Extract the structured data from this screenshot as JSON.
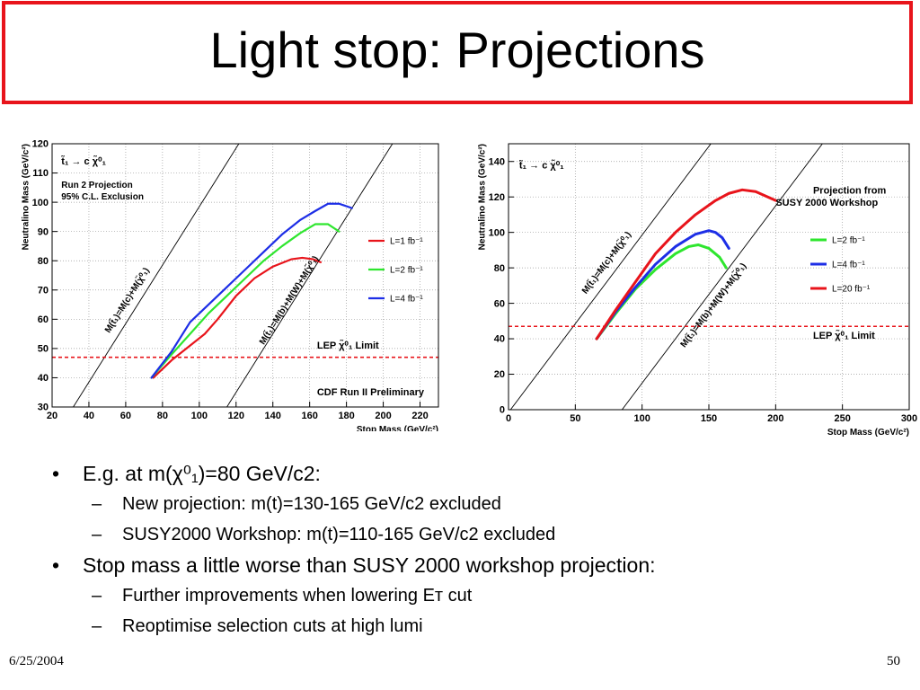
{
  "slide": {
    "title": "Light stop: Projections",
    "date": "6/25/2004",
    "page": "50"
  },
  "colors": {
    "accent": "#e8141b",
    "red": "#e8141b",
    "green": "#2ee62e",
    "blue": "#1d2ee6",
    "lep": "#e8141b"
  },
  "bullets": [
    {
      "level": 1,
      "text": "E.g. at m(χ⁰₁)=80 GeV/c2:"
    },
    {
      "level": 2,
      "text": "New projection: m(t)=130-165 GeV/c2 excluded"
    },
    {
      "level": 2,
      "text": "SUSY2000 Workshop: m(t)=110-165 GeV/c2 excluded"
    },
    {
      "level": 1,
      "text": "Stop mass a little worse than SUSY 2000 workshop projection:"
    },
    {
      "level": 2,
      "text": "Further improvements when lowering Eᴛ cut"
    },
    {
      "level": 2,
      "text": "Reoptimise selection cuts at high lumi"
    }
  ],
  "chart_data": [
    {
      "type": "line",
      "xlabel": "Stop Mass (GeV/c²)",
      "ylabel": "Neutralino Mass (GeV/c²)",
      "xlim": [
        20,
        230
      ],
      "ylim": [
        30,
        120
      ],
      "xticks": [
        20,
        40,
        60,
        80,
        100,
        120,
        140,
        160,
        180,
        200,
        220
      ],
      "yticks": [
        30,
        40,
        50,
        60,
        70,
        80,
        90,
        100,
        110,
        120
      ],
      "grid": true,
      "legend_position": "right",
      "annotations": {
        "decay": "t̃₁ → c χ̃⁰₁",
        "projection": "Run 2 Projection",
        "exclusion": "95% C.L. Exclusion",
        "diag1": "M(t̃₁)=M(c)+M(χ̃⁰₁)",
        "diag2": "M(t̃₁)=M(b)+M(W)+M(χ̃⁰₁)",
        "lep": "LEP χ̃⁰₁ Limit",
        "prelim": "CDF Run II Preliminary"
      },
      "lep_limit": 47,
      "series": [
        {
          "name": "L=1 fb⁻¹",
          "color": "red",
          "x": [
            75,
            85,
            95,
            103,
            110,
            120,
            130,
            140,
            150,
            156,
            162,
            166
          ],
          "y": [
            40,
            46,
            51,
            55,
            60,
            68,
            74,
            78,
            80.5,
            81,
            80.5,
            79.5
          ]
        },
        {
          "name": "L=2 fb⁻¹",
          "color": "green",
          "x": [
            74,
            85,
            95,
            105,
            115,
            125,
            135,
            145,
            155,
            163,
            170,
            176
          ],
          "y": [
            40,
            48,
            55,
            62,
            68,
            74,
            80,
            85,
            89.5,
            92.5,
            92.5,
            90
          ]
        },
        {
          "name": "L=4 fb⁻¹",
          "color": "blue",
          "x": [
            74,
            85,
            95,
            105,
            115,
            125,
            135,
            145,
            155,
            163,
            170,
            176,
            183
          ],
          "y": [
            40,
            49,
            59,
            65,
            71,
            77,
            83,
            89,
            94,
            97,
            99.5,
            99.5,
            98
          ]
        }
      ]
    },
    {
      "type": "line",
      "xlabel": "Stop Mass (GeV/c²)",
      "ylabel": "Neutralino Mass (GeV/c²)",
      "xlim": [
        0,
        300
      ],
      "ylim": [
        0,
        150
      ],
      "xticks": [
        0,
        50,
        100,
        150,
        200,
        250,
        300
      ],
      "yticks": [
        0,
        20,
        40,
        60,
        80,
        100,
        120,
        140
      ],
      "grid": true,
      "legend_position": "right",
      "annotations": {
        "decay": "t̃₁ → c χ̃⁰₁",
        "legend_title_1": "Projection from",
        "legend_title_2": "SUSY 2000 Workshop",
        "diag1": "M(t̃₁)=M(c)+M(χ̃⁰₁)",
        "diag2": "M(t̃₁)=M(b)+M(W)+M(χ̃⁰₁)",
        "lep": "LEP χ̃⁰₁ Limit"
      },
      "lep_limit": 47,
      "series": [
        {
          "name": "L=2 fb⁻¹",
          "color": "green",
          "x": [
            66,
            80,
            95,
            110,
            125,
            135,
            142,
            150,
            158,
            163
          ],
          "y": [
            40,
            54,
            68,
            79,
            88,
            92,
            93,
            91,
            86,
            80
          ]
        },
        {
          "name": "L=4 fb⁻¹",
          "color": "blue",
          "x": [
            66,
            80,
            95,
            110,
            125,
            140,
            150,
            155,
            160,
            165
          ],
          "y": [
            40,
            55,
            69,
            82,
            92,
            99,
            101,
            100,
            97,
            91
          ]
        },
        {
          "name": "L=20 fb⁻¹",
          "color": "red",
          "x": [
            66,
            80,
            95,
            110,
            125,
            140,
            155,
            165,
            175,
            185,
            200
          ],
          "y": [
            40,
            56,
            72,
            88,
            100,
            110,
            118,
            122,
            124,
            123,
            118
          ]
        }
      ]
    }
  ]
}
